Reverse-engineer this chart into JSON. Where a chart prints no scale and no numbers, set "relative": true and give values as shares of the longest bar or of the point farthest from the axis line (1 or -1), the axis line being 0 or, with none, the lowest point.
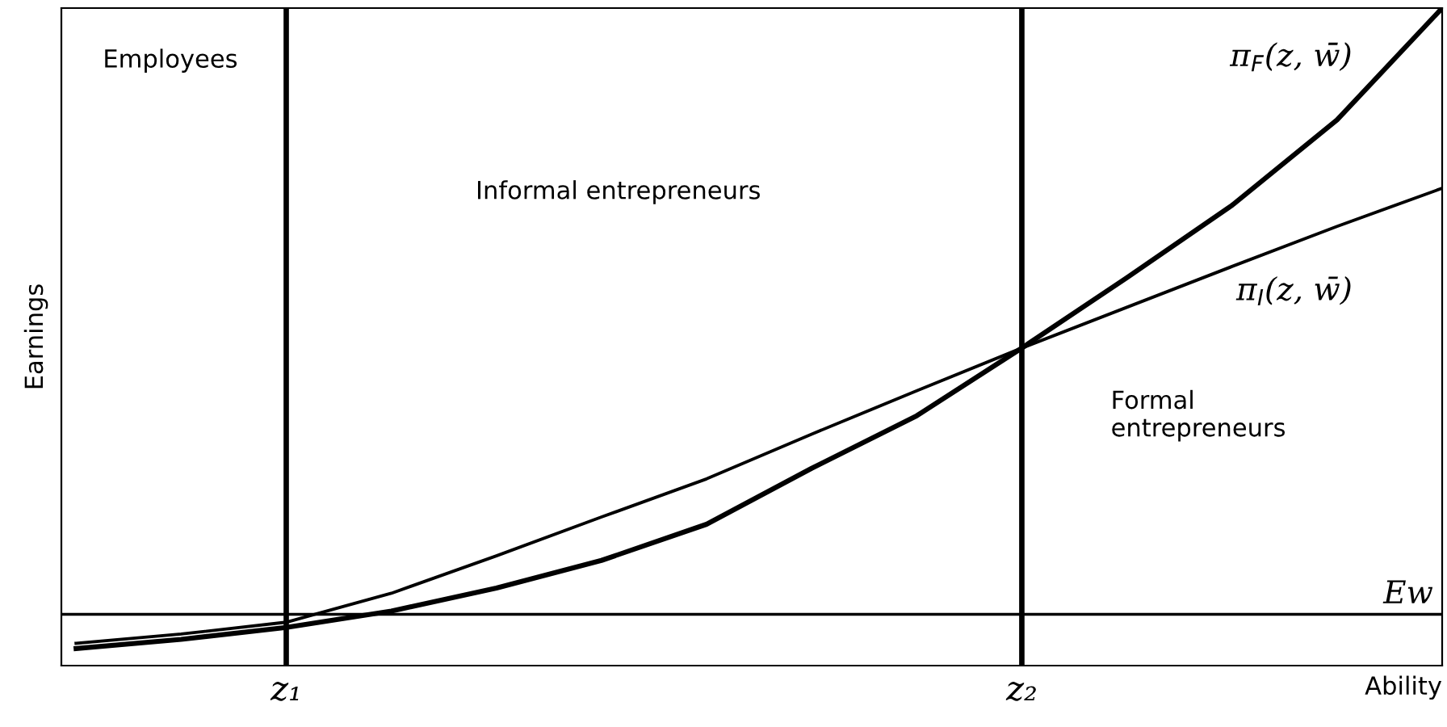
{
  "chart_data": {
    "type": "line",
    "relative": true,
    "xlabel": "Ability",
    "ylabel": "Earnings",
    "categories": [
      null,
      null,
      "z₁",
      null,
      null,
      null,
      null,
      null,
      null,
      "z₂",
      null,
      null,
      null,
      null
    ],
    "series": [
      {
        "name": "π$_{F}$(z, w̄)",
        "color": "#000000",
        "values": [
          0.026,
          0.04,
          0.058,
          0.083,
          0.118,
          0.16,
          0.215,
          0.3,
          0.38,
          0.483,
          0.59,
          0.7,
          0.83,
          1.0
        ]
      },
      {
        "name": "π$_{I}$(z, w̄)",
        "color": "#000000",
        "values": [
          0.034,
          0.048,
          0.066,
          0.11,
          0.167,
          0.226,
          0.284,
          0.352,
          0.418,
          0.483,
          0.545,
          0.607,
          0.668,
          0.726
        ]
      }
    ],
    "ref_lines": [
      {
        "axis": "y",
        "value": 0.078,
        "label": "Ew"
      },
      {
        "axis": "x",
        "value": "z₁"
      },
      {
        "axis": "x",
        "value": "z₂"
      }
    ],
    "annotations": [
      "Employees",
      "Informal entrepreneurs",
      "Formal\nentrepreneurs"
    ]
  }
}
